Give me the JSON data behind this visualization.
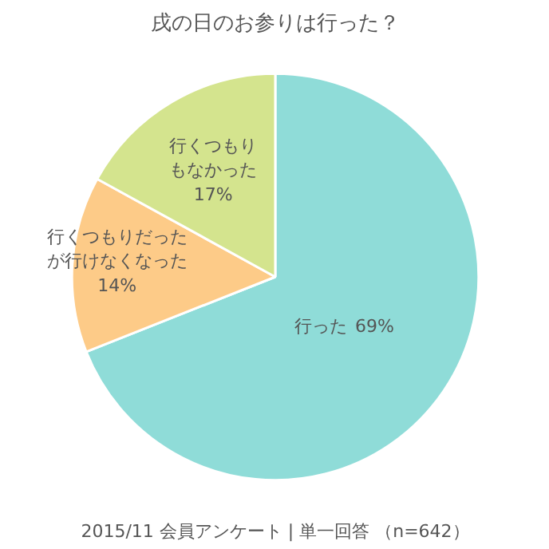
{
  "chart_data": {
    "type": "pie",
    "title": "戌の日のお参りは行った？",
    "categories": [
      "行った",
      "行くつもりだったが行けなくなった",
      "行くつもりもなかった"
    ],
    "values": [
      69,
      14,
      17
    ],
    "value_labels": [
      "69%",
      "14%",
      "17%"
    ],
    "colors": [
      "#8fdcd8",
      "#fdcb88",
      "#d4e48e"
    ],
    "annotations": [
      "2015/11 会員アンケート | 単一回答 （n=642）"
    ]
  }
}
